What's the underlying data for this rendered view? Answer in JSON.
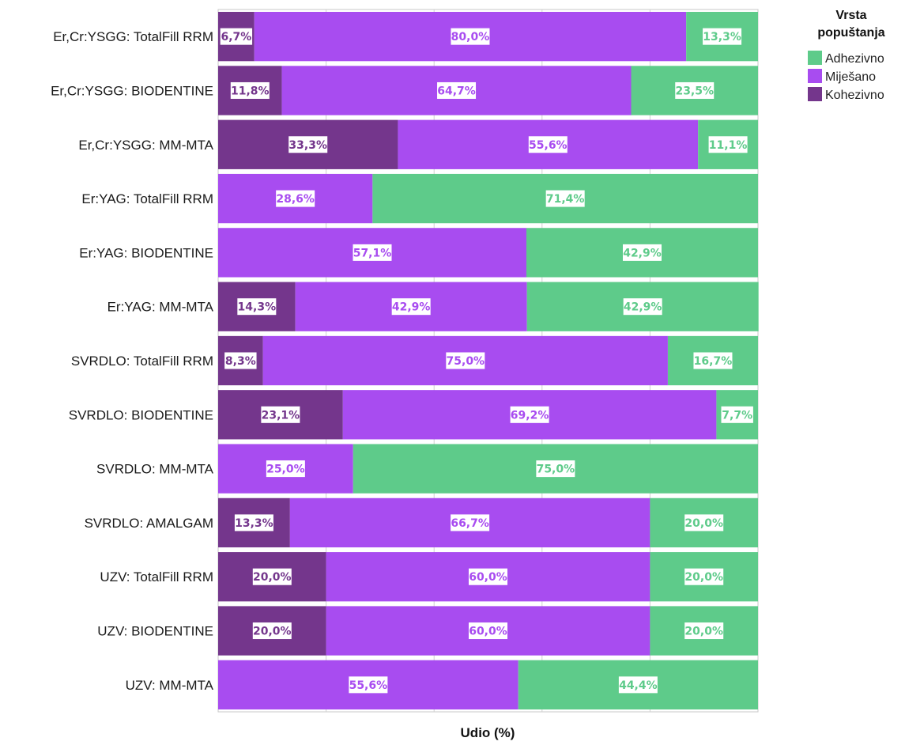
{
  "chart_data": {
    "type": "bar",
    "orientation": "horizontal",
    "stacked": true,
    "xlabel": "Udio (%)",
    "xlim": [
      0,
      100
    ],
    "grid": true,
    "legend": {
      "title": "Vrsta popuštanja",
      "title_lines": [
        "Vrsta",
        "popuštanja"
      ],
      "placement": "top-right",
      "entries": [
        "Adhezivno",
        "Miješano",
        "Kohezivno"
      ]
    },
    "categories": [
      "Er,Cr:YSGG: TotalFill RRM",
      "Er,Cr:YSGG: BIODENTINE",
      "Er,Cr:YSGG: MM-MTA",
      "Er:YAG: TotalFill RRM",
      "Er:YAG: BIODENTINE",
      "Er:YAG: MM-MTA",
      "SVRDLO: TotalFill RRM",
      "SVRDLO: BIODENTINE",
      "SVRDLO: MM-MTA",
      "SVRDLO: AMALGAM",
      "UZV: TotalFill RRM",
      "UZV: BIODENTINE",
      "UZV: MM-MTA"
    ],
    "series": [
      {
        "name": "Kohezivno",
        "color": "#74368c",
        "values": [
          6.7,
          11.8,
          33.3,
          0,
          0,
          14.3,
          8.3,
          23.1,
          0,
          13.3,
          20.0,
          20.0,
          0
        ],
        "labels": [
          "6,7%",
          "11,8%",
          "33,3%",
          "",
          "",
          "14,3%",
          "8,3%",
          "23,1%",
          "",
          "13,3%",
          "20,0%",
          "20,0%",
          ""
        ]
      },
      {
        "name": "Miješano",
        "color": "#a84cf0",
        "values": [
          80.0,
          64.7,
          55.6,
          28.6,
          57.1,
          42.9,
          75.0,
          69.2,
          25.0,
          66.7,
          60.0,
          60.0,
          55.6
        ],
        "labels": [
          "80,0%",
          "64,7%",
          "55,6%",
          "28,6%",
          "57,1%",
          "42,9%",
          "75,0%",
          "69,2%",
          "25,0%",
          "66,7%",
          "60,0%",
          "60,0%",
          "55,6%"
        ]
      },
      {
        "name": "Adhezivno",
        "color": "#5ecb8a",
        "values": [
          13.3,
          23.5,
          11.1,
          71.4,
          42.9,
          42.9,
          16.7,
          7.7,
          75.0,
          20.0,
          20.0,
          20.0,
          44.4
        ],
        "labels": [
          "13,3%",
          "23,5%",
          "11,1%",
          "71,4%",
          "42,9%",
          "42,9%",
          "16,7%",
          "7,7%",
          "75,0%",
          "20,0%",
          "20,0%",
          "20,0%",
          "44,4%"
        ]
      }
    ]
  }
}
